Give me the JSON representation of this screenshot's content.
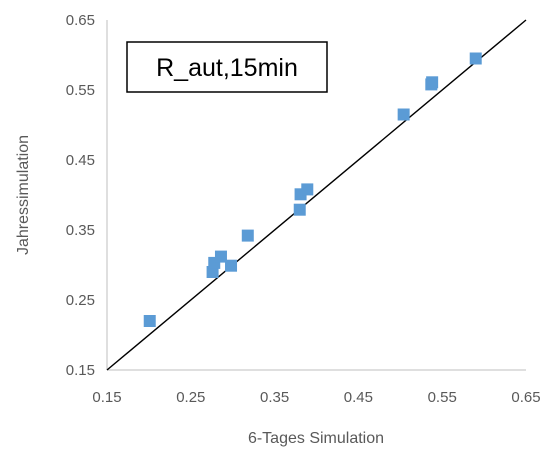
{
  "chart_data": {
    "type": "scatter",
    "title": "",
    "annotation": "R_aut,15min",
    "xlabel": "6-Tages Simulation",
    "ylabel": "Jahressimulation",
    "xlim": [
      0.15,
      0.65
    ],
    "ylim": [
      0.15,
      0.65
    ],
    "x_ticks": [
      "0.15",
      "0.25",
      "0.35",
      "0.45",
      "0.55",
      "0.65"
    ],
    "y_ticks": [
      "0.15",
      "0.25",
      "0.35",
      "0.45",
      "0.55",
      "0.65"
    ],
    "grid": false,
    "legend": false,
    "reference_line": {
      "from": [
        0.15,
        0.15
      ],
      "to": [
        0.65,
        0.65
      ],
      "color": "#000000"
    },
    "series": [
      {
        "color": "#5B9BD5",
        "marker": "square",
        "points": [
          [
            0.201,
            0.22
          ],
          [
            0.276,
            0.29
          ],
          [
            0.278,
            0.303
          ],
          [
            0.286,
            0.312
          ],
          [
            0.298,
            0.299
          ],
          [
            0.318,
            0.342
          ],
          [
            0.38,
            0.379
          ],
          [
            0.381,
            0.401
          ],
          [
            0.389,
            0.408
          ],
          [
            0.504,
            0.515
          ],
          [
            0.537,
            0.558
          ],
          [
            0.538,
            0.561
          ],
          [
            0.59,
            0.595
          ]
        ]
      }
    ]
  }
}
